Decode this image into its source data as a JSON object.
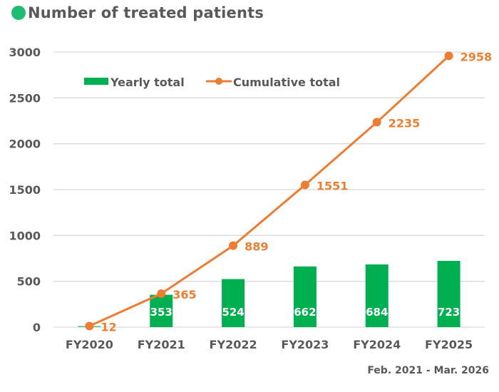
{
  "title": "Number of treated patients",
  "title_marker_color": "#1dbd72",
  "footnote": "Feb. 2021 - Mar. 2026",
  "colors": {
    "bar": "#00b050",
    "line": "#ed7d31",
    "grid": "#d9d9d9",
    "text": "#595959"
  },
  "legend": [
    {
      "label": "Yearly total",
      "type": "bar"
    },
    {
      "label": "Cumulative total",
      "type": "line"
    }
  ],
  "chart_data": {
    "type": "bar+line",
    "title": "Number of treated patients",
    "xlabel": "",
    "ylabel": "",
    "ylim": [
      0,
      3000
    ],
    "yticks": [
      0,
      500,
      1000,
      1500,
      2000,
      2500,
      3000
    ],
    "grid": true,
    "legend_position": "top-left inside",
    "categories": [
      "FY2020",
      "FY2021",
      "FY2022",
      "FY2023",
      "FY2024",
      "FY2025"
    ],
    "series": [
      {
        "name": "Yearly total",
        "type": "bar",
        "values": [
          12,
          353,
          524,
          662,
          684,
          723
        ]
      },
      {
        "name": "Cumulative total",
        "type": "line",
        "values": [
          12,
          365,
          889,
          1551,
          2235,
          2958
        ]
      }
    ],
    "annotation": "Feb. 2021 - Mar. 2026"
  }
}
